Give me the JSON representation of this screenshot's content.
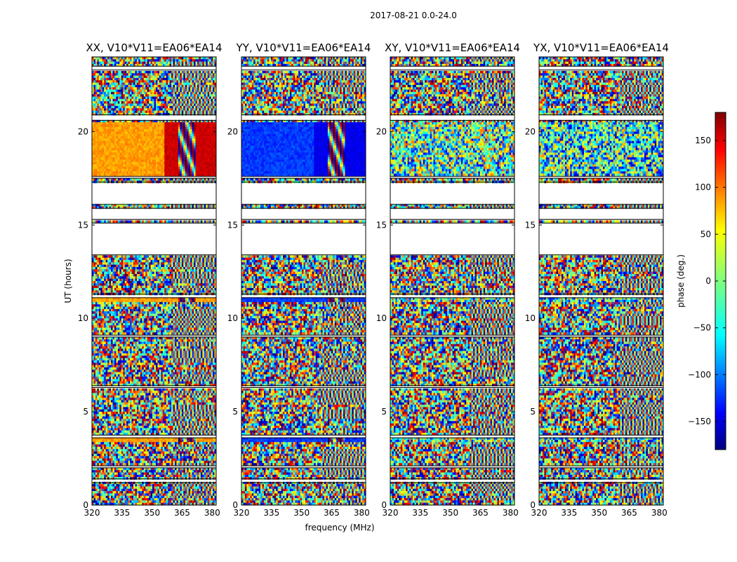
{
  "figure": {
    "suptitle": "2017-08-21 0.0-24.0",
    "colors": {
      "background": "#ffffff",
      "axes": "#000000",
      "gap": "#ffffff"
    }
  },
  "chart_data": {
    "type": "heatmap",
    "title": "2017-08-21 0.0-24.0",
    "xlabel": "frequency (MHz)",
    "ylabel": "UT (hours)",
    "xlim": [
      320,
      382
    ],
    "ylim": [
      0,
      24
    ],
    "xticks": [
      320,
      335,
      350,
      365,
      380
    ],
    "yticks": [
      0,
      5,
      10,
      15,
      20
    ],
    "panels": [
      {
        "title": "XX, V10*V11=EA06*EA14",
        "baseline": "XX"
      },
      {
        "title": "YY, V10*V11=EA06*EA14",
        "baseline": "YY"
      },
      {
        "title": "XY, V10*V11=EA06*EA14",
        "baseline": "XY"
      },
      {
        "title": "YX, V10*V11=EA06*EA14",
        "baseline": "YX"
      }
    ],
    "colorbar": {
      "label": "phase (deg.)",
      "range": [
        -180,
        180
      ],
      "ticks": [
        -150,
        -100,
        -50,
        0,
        50,
        100,
        150
      ],
      "colormap": "jet"
    },
    "no_data_hours": [
      [
        1.2,
        1.4
      ],
      [
        2.0,
        2.1
      ],
      [
        3.6,
        3.75
      ],
      [
        6.3,
        6.4
      ],
      [
        9.0,
        9.1
      ],
      [
        11.1,
        11.3
      ],
      [
        13.4,
        15.1
      ],
      [
        15.3,
        15.9
      ],
      [
        16.1,
        17.3
      ],
      [
        17.5,
        17.6
      ],
      [
        20.6,
        20.9
      ],
      [
        23.3,
        23.5
      ]
    ],
    "cal_scans_hours": [
      [
        17.6,
        20.5
      ],
      [
        10.9,
        11.3
      ],
      [
        3.4,
        3.6
      ]
    ]
  }
}
